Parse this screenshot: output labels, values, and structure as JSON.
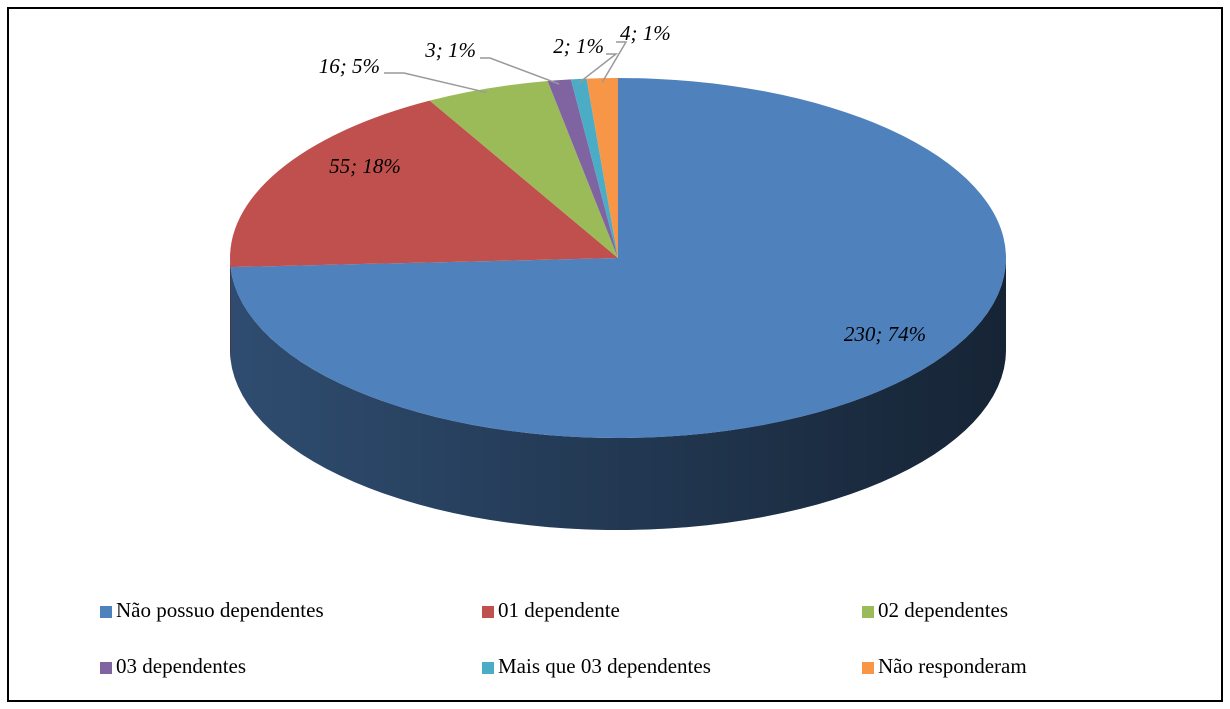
{
  "chart_data": {
    "type": "pie3d",
    "categories": [
      "Não possuo dependentes",
      "01 dependente",
      "02 dependentes",
      "03 dependentes",
      "Mais que 03 dependentes",
      "Não responderam"
    ],
    "values": [
      230,
      55,
      16,
      3,
      2,
      4
    ],
    "value_labels": [
      "230; 74%",
      "55; 18%",
      "16; 5%",
      "3; 1%",
      "2; 1%",
      "4; 1%"
    ],
    "colors": [
      "#4f81bd",
      "#c0504d",
      "#9bbb59",
      "#8064a2",
      "#4bacc6",
      "#f79646"
    ],
    "legend": "bottom"
  }
}
